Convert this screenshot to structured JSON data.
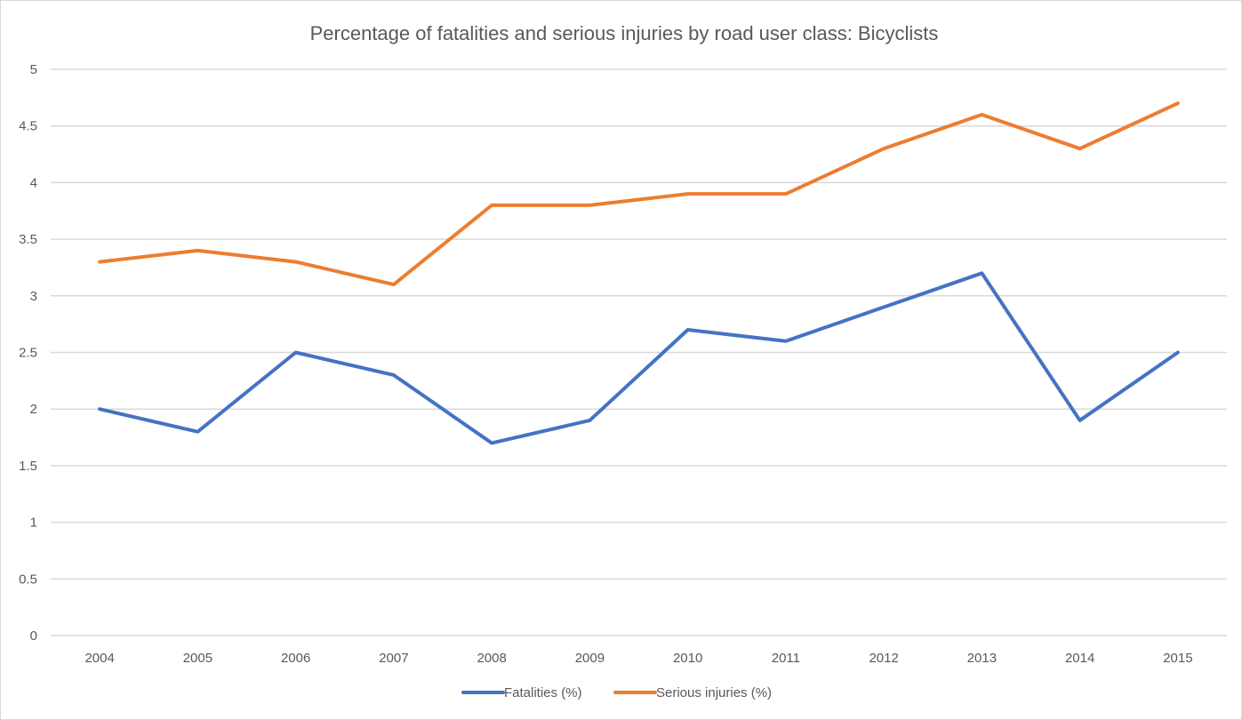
{
  "chart_data": {
    "type": "line",
    "title": "Percentage of fatalities and serious injuries by road user class: Bicyclists",
    "xlabel": "",
    "ylabel": "",
    "categories": [
      "2004",
      "2005",
      "2006",
      "2007",
      "2008",
      "2009",
      "2010",
      "2011",
      "2012",
      "2013",
      "2014",
      "2015"
    ],
    "y_ticks": [
      "0",
      "0.5",
      "1",
      "1.5",
      "2",
      "2.5",
      "3",
      "3.5",
      "4",
      "4.5",
      "5"
    ],
    "ylim": [
      0,
      5
    ],
    "grid": true,
    "legend_position": "bottom",
    "series": [
      {
        "name": "Fatalities (%)",
        "color": "#4472c4",
        "values": [
          2.0,
          1.8,
          2.5,
          2.3,
          1.7,
          1.9,
          2.7,
          2.6,
          2.9,
          3.2,
          1.9,
          2.5
        ]
      },
      {
        "name": "Serious injuries (%)",
        "color": "#ed7d31",
        "values": [
          3.3,
          3.4,
          3.3,
          3.1,
          3.8,
          3.8,
          3.9,
          3.9,
          4.3,
          4.6,
          4.3,
          4.7
        ]
      }
    ]
  }
}
